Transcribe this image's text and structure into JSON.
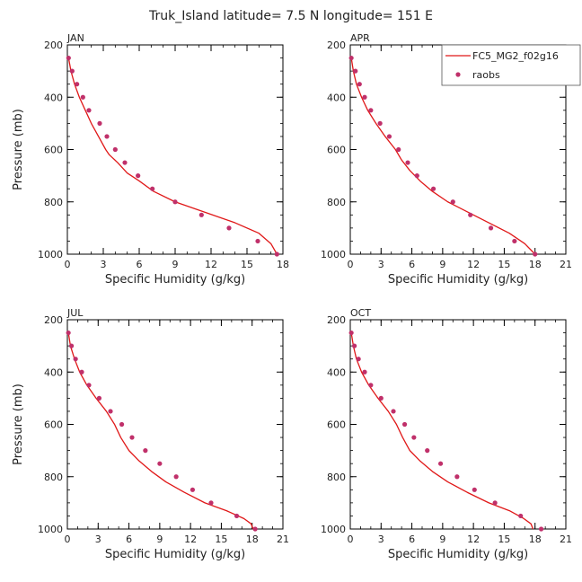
{
  "figure": {
    "title": "Truk_Island   latitude= 7.5 N longitude= 151 E"
  },
  "legend": {
    "line_label": "FC5_MG2_f02g16",
    "points_label": "raobs"
  },
  "colors": {
    "model_line": "#e01818",
    "raobs": "#c0306a",
    "axes": "#000000",
    "background": "#ffffff"
  },
  "chart_data": [
    {
      "type": "line",
      "title": "JAN",
      "xlabel": "Specific Humidity (g/kg)",
      "ylabel": "Pressure (mb)",
      "xlim": [
        0,
        18
      ],
      "ylim": [
        1000,
        200
      ],
      "xticks": [
        "0",
        "3",
        "6",
        "9",
        "12",
        "15",
        "18"
      ],
      "yticks": [
        "200",
        "400",
        "600",
        "800",
        "1000"
      ],
      "series": [
        {
          "name": "FC5_MG2_f02g16",
          "kind": "line",
          "x": [
            0.1,
            0.3,
            0.6,
            1.0,
            1.5,
            2.0,
            2.6,
            3.2,
            3.5,
            4.2,
            5.0,
            6.0,
            7.2,
            9.0,
            11.5,
            14.0,
            16.0,
            17.0,
            17.5
          ],
          "y": [
            250,
            300,
            350,
            400,
            450,
            500,
            550,
            600,
            620,
            650,
            690,
            720,
            760,
            800,
            840,
            880,
            920,
            960,
            1000
          ]
        },
        {
          "name": "raobs",
          "kind": "scatter",
          "x": [
            0.1,
            0.4,
            0.8,
            1.3,
            1.8,
            2.7,
            3.3,
            4.0,
            4.8,
            5.9,
            7.1,
            9.0,
            11.2,
            13.5,
            15.9,
            17.5
          ],
          "y": [
            250,
            300,
            350,
            400,
            450,
            500,
            550,
            600,
            650,
            700,
            750,
            800,
            850,
            900,
            950,
            1000
          ]
        }
      ]
    },
    {
      "type": "line",
      "title": "APR",
      "xlabel": "Specific Humidity (g/kg)",
      "ylabel": "",
      "xlim": [
        0,
        21
      ],
      "ylim": [
        1000,
        200
      ],
      "xticks": [
        "0",
        "3",
        "6",
        "9",
        "12",
        "15",
        "18",
        "21"
      ],
      "yticks": [
        "200",
        "400",
        "600",
        "800",
        "1000"
      ],
      "series": [
        {
          "name": "FC5_MG2_f02g16",
          "kind": "line",
          "x": [
            0.1,
            0.3,
            0.6,
            1.1,
            1.7,
            2.5,
            3.4,
            4.4,
            5.0,
            5.8,
            6.8,
            8.0,
            9.5,
            11.5,
            13.5,
            15.5,
            17.0,
            18.0
          ],
          "y": [
            250,
            300,
            350,
            400,
            450,
            500,
            550,
            600,
            640,
            680,
            720,
            760,
            800,
            840,
            880,
            920,
            960,
            1000
          ]
        },
        {
          "name": "raobs",
          "kind": "scatter",
          "x": [
            0.1,
            0.5,
            0.9,
            1.4,
            2.0,
            2.9,
            3.8,
            4.7,
            5.6,
            6.5,
            8.1,
            10.0,
            11.7,
            13.7,
            16.0,
            18.0
          ],
          "y": [
            250,
            300,
            350,
            400,
            450,
            500,
            550,
            600,
            650,
            700,
            750,
            800,
            850,
            900,
            950,
            1000
          ]
        }
      ]
    },
    {
      "type": "line",
      "title": "JUL",
      "xlabel": "Specific Humidity (g/kg)",
      "ylabel": "Pressure (mb)",
      "xlim": [
        0,
        21
      ],
      "ylim": [
        1000,
        200
      ],
      "xticks": [
        "0",
        "3",
        "6",
        "9",
        "12",
        "15",
        "18",
        "21"
      ],
      "yticks": [
        "200",
        "400",
        "600",
        "800",
        "1000"
      ],
      "series": [
        {
          "name": "FC5_MG2_f02g16",
          "kind": "line",
          "x": [
            0.1,
            0.3,
            0.7,
            1.2,
            1.9,
            2.8,
            3.8,
            4.6,
            5.2,
            6.0,
            7.0,
            8.2,
            9.6,
            11.4,
            13.4,
            15.5,
            17.2,
            17.9,
            18.1
          ],
          "y": [
            250,
            300,
            350,
            400,
            450,
            500,
            550,
            600,
            650,
            700,
            740,
            780,
            820,
            860,
            900,
            930,
            960,
            980,
            1000
          ]
        },
        {
          "name": "raobs",
          "kind": "scatter",
          "x": [
            0.1,
            0.4,
            0.8,
            1.4,
            2.1,
            3.1,
            4.2,
            5.3,
            6.3,
            7.6,
            9.0,
            10.6,
            12.2,
            14.0,
            16.5,
            18.3
          ],
          "y": [
            250,
            300,
            350,
            400,
            450,
            500,
            550,
            600,
            650,
            700,
            750,
            800,
            850,
            900,
            950,
            1000
          ]
        }
      ]
    },
    {
      "type": "line",
      "title": "OCT",
      "xlabel": "Specific Humidity (g/kg)",
      "ylabel": "",
      "xlim": [
        0,
        21
      ],
      "ylim": [
        1000,
        200
      ],
      "xticks": [
        "0",
        "3",
        "6",
        "9",
        "12",
        "15",
        "18",
        "21"
      ],
      "yticks": [
        "200",
        "400",
        "600",
        "800",
        "1000"
      ],
      "series": [
        {
          "name": "FC5_MG2_f02g16",
          "kind": "line",
          "x": [
            0.1,
            0.3,
            0.6,
            1.1,
            1.8,
            2.7,
            3.7,
            4.5,
            5.1,
            5.8,
            6.8,
            8.0,
            9.5,
            11.4,
            13.5,
            15.5,
            16.9,
            17.6,
            17.8
          ],
          "y": [
            250,
            300,
            350,
            400,
            450,
            500,
            550,
            600,
            650,
            700,
            740,
            780,
            820,
            860,
            900,
            930,
            960,
            980,
            1000
          ]
        },
        {
          "name": "raobs",
          "kind": "scatter",
          "x": [
            0.1,
            0.4,
            0.8,
            1.4,
            2.0,
            3.0,
            4.2,
            5.3,
            6.2,
            7.5,
            8.8,
            10.4,
            12.1,
            14.1,
            16.6,
            18.6
          ],
          "y": [
            250,
            300,
            350,
            400,
            450,
            500,
            550,
            600,
            650,
            700,
            750,
            800,
            850,
            900,
            950,
            1000
          ]
        }
      ]
    }
  ]
}
